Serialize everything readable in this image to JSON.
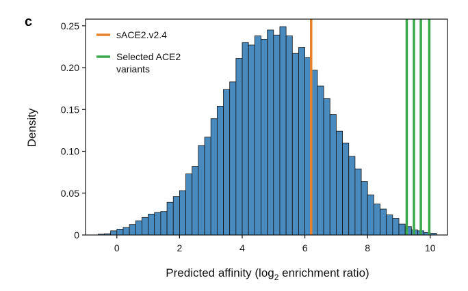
{
  "panel_label": "c",
  "chart_data": {
    "type": "bar",
    "title": "",
    "xlabel": "Predicted affinity (log",
    "xlabel_sub": "2",
    "xlabel_tail": " enrichment ratio)",
    "ylabel": "Density",
    "xlim": [
      -1.0,
      10.55
    ],
    "ylim": [
      0,
      0.258
    ],
    "xticks": [
      0,
      2,
      4,
      6,
      8,
      10
    ],
    "yticks": [
      0,
      0.05,
      0.1,
      0.15,
      0.2,
      0.25
    ],
    "ytick_labels": [
      "0",
      "0.05",
      "0.10",
      "0.15",
      "0.20",
      "0.25"
    ],
    "bin_width": 0.2,
    "bin_start": -0.6,
    "bar_color": "#4a8bbf",
    "bar_edge": "#111111",
    "values": [
      0.001,
      0.0015,
      0.005,
      0.007,
      0.009,
      0.0125,
      0.017,
      0.021,
      0.025,
      0.027,
      0.028,
      0.039,
      0.046,
      0.053,
      0.073,
      0.082,
      0.107,
      0.117,
      0.139,
      0.154,
      0.174,
      0.183,
      0.211,
      0.23,
      0.227,
      0.238,
      0.234,
      0.245,
      0.239,
      0.249,
      0.238,
      0.217,
      0.224,
      0.212,
      0.197,
      0.178,
      0.163,
      0.144,
      0.124,
      0.11,
      0.094,
      0.079,
      0.064,
      0.048,
      0.037,
      0.031,
      0.024,
      0.02,
      0.013,
      0.01,
      0.006,
      0.005,
      0.003,
      0.002
    ],
    "legend": [
      {
        "label": "sACE2.v2.4",
        "color": "#e8812b"
      },
      {
        "label": "Selected ACE2\nvariants",
        "color": "#3aa84a"
      }
    ],
    "reference_lines": [
      {
        "series": "sACE2.v2.4",
        "x": 6.2,
        "color": "#e8812b"
      },
      {
        "series": "Selected ACE2 variants",
        "x": 9.25,
        "color": "#3aa84a"
      },
      {
        "series": "Selected ACE2 variants",
        "x": 9.48,
        "color": "#3aa84a"
      },
      {
        "series": "Selected ACE2 variants",
        "x": 9.7,
        "color": "#3aa84a"
      },
      {
        "series": "Selected ACE2 variants",
        "x": 9.97,
        "color": "#3aa84a"
      }
    ]
  }
}
